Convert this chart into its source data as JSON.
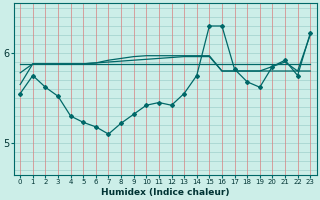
{
  "xlabel": "Humidex (Indice chaleur)",
  "background_color": "#cceee8",
  "line_color": "#006868",
  "xlim": [
    -0.5,
    23.5
  ],
  "ylim": [
    4.65,
    6.55
  ],
  "yticks": [
    5,
    6
  ],
  "xticks": [
    0,
    1,
    2,
    3,
    4,
    5,
    6,
    7,
    8,
    9,
    10,
    11,
    12,
    13,
    14,
    15,
    16,
    17,
    18,
    19,
    20,
    21,
    22,
    23
  ],
  "ref_line1": [
    5.88,
    5.88,
    5.88,
    5.88,
    5.88,
    5.88,
    5.88,
    5.88,
    5.88,
    5.88,
    5.88,
    5.88,
    5.88,
    5.88,
    5.88,
    5.88,
    5.88,
    5.88,
    5.88,
    5.88,
    5.88,
    5.88,
    5.88,
    5.88
  ],
  "ref_line2": [
    5.78,
    5.88,
    5.88,
    5.88,
    5.88,
    5.88,
    5.89,
    5.9,
    5.91,
    5.92,
    5.93,
    5.94,
    5.95,
    5.96,
    5.96,
    5.96,
    5.8,
    5.8,
    5.8,
    5.8,
    5.8,
    5.8,
    5.8,
    5.8
  ],
  "ref_line3": [
    5.65,
    5.88,
    5.88,
    5.88,
    5.88,
    5.88,
    5.89,
    5.92,
    5.94,
    5.96,
    5.97,
    5.97,
    5.97,
    5.97,
    5.97,
    5.97,
    5.8,
    5.8,
    5.8,
    5.8,
    5.85,
    5.9,
    5.8,
    6.2
  ],
  "curve_x": [
    0,
    1,
    2,
    3,
    4,
    5,
    6,
    7,
    8,
    9,
    10,
    11,
    12,
    13,
    14,
    15,
    16,
    17,
    18,
    19,
    20,
    21,
    22,
    23
  ],
  "curve_y": [
    5.55,
    5.75,
    5.62,
    5.52,
    5.3,
    5.23,
    5.18,
    5.1,
    5.22,
    5.32,
    5.42,
    5.45,
    5.42,
    5.55,
    5.75,
    6.3,
    6.3,
    5.82,
    5.68,
    5.62,
    5.85,
    5.92,
    5.75,
    6.22
  ]
}
